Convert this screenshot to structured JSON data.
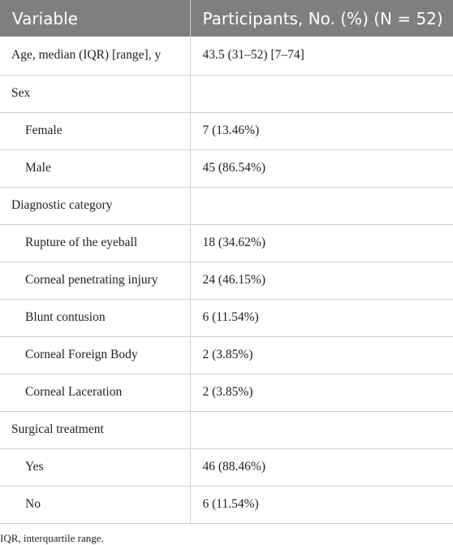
{
  "table": {
    "headers": [
      "Variable",
      "Participants, No. (%) (N = 52)"
    ],
    "rows": [
      {
        "variable": "Age, median (IQR) [range], y",
        "value": "43.5 (31–52) [7–74]",
        "indent": false
      },
      {
        "variable": "Sex",
        "value": "",
        "indent": false
      },
      {
        "variable": "Female",
        "value": "7 (13.46%)",
        "indent": true
      },
      {
        "variable": "Male",
        "value": "45 (86.54%)",
        "indent": true
      },
      {
        "variable": "Diagnostic category",
        "value": "",
        "indent": false
      },
      {
        "variable": "Rupture of the eyeball",
        "value": "18 (34.62%)",
        "indent": true
      },
      {
        "variable": "Corneal penetrating injury",
        "value": "24 (46.15%)",
        "indent": true
      },
      {
        "variable": "Blunt contusion",
        "value": "6 (11.54%)",
        "indent": true
      },
      {
        "variable": "Corneal Foreign Body",
        "value": "2 (3.85%)",
        "indent": true
      },
      {
        "variable": "Corneal Laceration",
        "value": "2 (3.85%)",
        "indent": true
      },
      {
        "variable": "Surgical treatment",
        "value": "",
        "indent": false
      },
      {
        "variable": "Yes",
        "value": "46 (88.46%)",
        "indent": true
      },
      {
        "variable": "No",
        "value": "6 (11.54%)",
        "indent": true
      }
    ]
  },
  "footnote": "IQR, interquartile range.",
  "colors": {
    "header_bg": "#7f7f7f",
    "header_text": "#ffffff",
    "border": "#cfcfcf",
    "body_text": "#222222"
  }
}
